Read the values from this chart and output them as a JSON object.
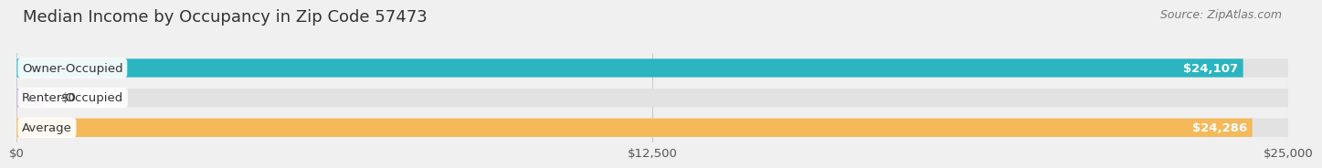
{
  "title": "Median Income by Occupancy in Zip Code 57473",
  "source": "Source: ZipAtlas.com",
  "categories": [
    "Owner-Occupied",
    "Renter-Occupied",
    "Average"
  ],
  "values": [
    24107,
    0,
    24286
  ],
  "bar_colors": [
    "#2ab5c0",
    "#c4aad4",
    "#f5b95a"
  ],
  "bar_bg_color": "#e2e2e2",
  "value_labels": [
    "$24,107",
    "$0",
    "$24,286"
  ],
  "xlim": [
    0,
    25000
  ],
  "xticks": [
    0,
    12500,
    25000
  ],
  "xtick_labels": [
    "$0",
    "$12,500",
    "$25,000"
  ],
  "title_fontsize": 13,
  "source_fontsize": 9,
  "label_fontsize": 9.5,
  "value_fontsize": 9.5,
  "bar_height": 0.62,
  "bg_color": "#f0f0f0",
  "title_color": "#333333",
  "source_color": "#777777",
  "cat_label_color": "#333333",
  "value_label_color": "#ffffff",
  "grid_color": "#cccccc"
}
